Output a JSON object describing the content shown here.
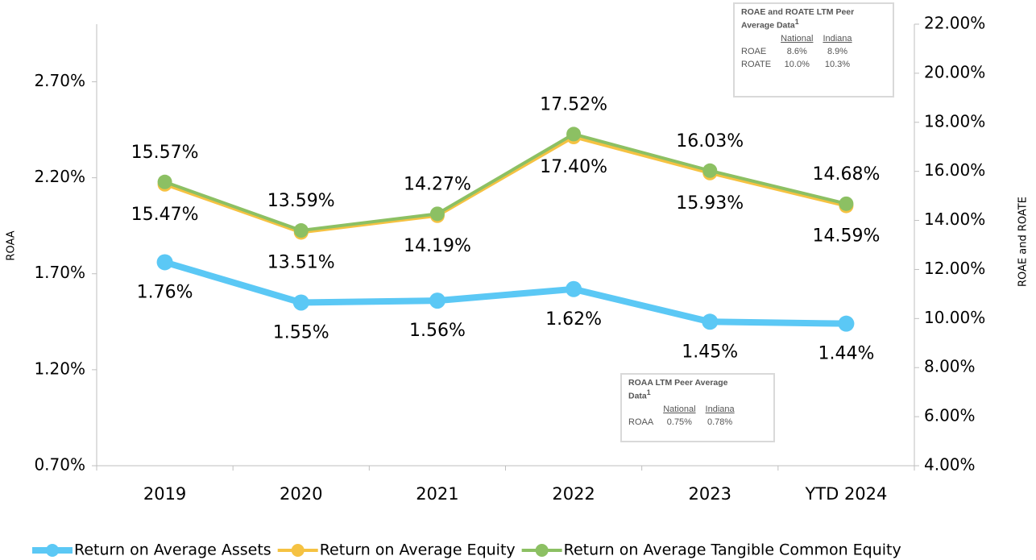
{
  "chart_data": {
    "type": "line",
    "categories": [
      "2019",
      "2020",
      "2021",
      "2022",
      "2023",
      "YTD 2024"
    ],
    "ylabel": "ROAA",
    "y2label": "ROAE and ROATE",
    "ylim": [
      0.7,
      3.0
    ],
    "yticks": [
      {
        "value": 0.7,
        "label": "0.70%"
      },
      {
        "value": 1.2,
        "label": "1.20%"
      },
      {
        "value": 1.7,
        "label": "1.70%"
      },
      {
        "value": 2.2,
        "label": "2.20%"
      },
      {
        "value": 2.7,
        "label": "2.70%"
      }
    ],
    "y2lim": [
      4,
      22
    ],
    "y2ticks": [
      {
        "value": 4,
        "label": "4.00%"
      },
      {
        "value": 6,
        "label": "6.00%"
      },
      {
        "value": 8,
        "label": "8.00%"
      },
      {
        "value": 10,
        "label": "10.00%"
      },
      {
        "value": 12,
        "label": "12.00%"
      },
      {
        "value": 14,
        "label": "14.00%"
      },
      {
        "value": 16,
        "label": "16.00%"
      },
      {
        "value": 18,
        "label": "18.00%"
      },
      {
        "value": 20,
        "label": "20.00%"
      },
      {
        "value": 22,
        "label": "22.00%"
      }
    ],
    "legend": "bottom",
    "series": [
      {
        "name": "Return on Average Assets",
        "color": "#5bc8f5",
        "axis": "y",
        "label_side": "below",
        "values": [
          1.76,
          1.55,
          1.56,
          1.62,
          1.45,
          1.44
        ],
        "value_labels": [
          "1.76%",
          "1.55%",
          "1.56%",
          "1.62%",
          "1.45%",
          "1.44%"
        ]
      },
      {
        "name": "Return on Average Equity",
        "color": "#f5c242",
        "axis": "y2",
        "label_side": "below",
        "values": [
          15.47,
          13.51,
          14.19,
          17.4,
          15.93,
          14.59
        ],
        "value_labels": [
          "15.47%",
          "13.51%",
          "14.19%",
          "17.40%",
          "15.93%",
          "14.59%"
        ]
      },
      {
        "name": "Return on Average Tangible Common Equity",
        "color": "#8cc063",
        "axis": "y2",
        "label_side": "above",
        "values": [
          15.57,
          13.59,
          14.27,
          17.52,
          16.03,
          14.68
        ],
        "value_labels": [
          "15.57%",
          "13.59%",
          "14.27%",
          "17.52%",
          "16.03%",
          "14.68%"
        ]
      }
    ]
  },
  "insets": [
    {
      "title": "ROAE and ROATE LTM Peer Average Data",
      "footnote": "1",
      "columns": [
        "National",
        "Indiana"
      ],
      "rows": [
        [
          "ROAE",
          "8.6%",
          "8.9%"
        ],
        [
          "ROATE",
          "10.0%",
          "10.3%"
        ]
      ]
    },
    {
      "title": "ROAA LTM Peer Average Data",
      "footnote": "1",
      "columns": [
        "National",
        "Indiana"
      ],
      "rows": [
        [
          "ROAA",
          "0.75%",
          "0.78%"
        ]
      ]
    }
  ]
}
